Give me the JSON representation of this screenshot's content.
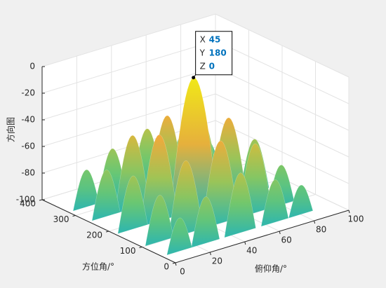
{
  "chart_data": {
    "type": "surface",
    "xlabel": "俯仰角/°",
    "ylabel": "方位角/°",
    "zlabel": "方向图",
    "xlim": [
      0,
      100
    ],
    "xticks": [
      0,
      20,
      40,
      60,
      80,
      100
    ],
    "ylim": [
      0,
      400
    ],
    "yticks": [
      0,
      100,
      200,
      300,
      400
    ],
    "zlim": [
      -100,
      0
    ],
    "zticks": [
      0,
      -20,
      -40,
      -60,
      -80,
      -100
    ],
    "grid": true,
    "lobes": [
      {
        "x": 45,
        "y": 180,
        "z": 0
      },
      {
        "x": 45,
        "y": 100,
        "z": -38
      },
      {
        "x": 45,
        "y": 260,
        "z": -38
      },
      {
        "x": 25,
        "y": 180,
        "z": -35
      },
      {
        "x": 65,
        "y": 180,
        "z": -38
      },
      {
        "x": 25,
        "y": 100,
        "z": -45
      },
      {
        "x": 65,
        "y": 100,
        "z": -48
      },
      {
        "x": 25,
        "y": 260,
        "z": -45
      },
      {
        "x": 65,
        "y": 260,
        "z": -48
      },
      {
        "x": 45,
        "y": 40,
        "z": -55
      },
      {
        "x": 45,
        "y": 320,
        "z": -55
      },
      {
        "x": 10,
        "y": 180,
        "z": -60
      },
      {
        "x": 80,
        "y": 180,
        "z": -60
      },
      {
        "x": 10,
        "y": 100,
        "z": -65
      },
      {
        "x": 80,
        "y": 100,
        "z": -70
      },
      {
        "x": 10,
        "y": 260,
        "z": -65
      },
      {
        "x": 80,
        "y": 260,
        "z": -70
      },
      {
        "x": 25,
        "y": 40,
        "z": -65
      },
      {
        "x": 65,
        "y": 40,
        "z": -68
      },
      {
        "x": 25,
        "y": 320,
        "z": -62
      },
      {
        "x": 65,
        "y": 320,
        "z": -68
      },
      {
        "x": 10,
        "y": 40,
        "z": -75
      },
      {
        "x": 80,
        "y": 40,
        "z": -78
      },
      {
        "x": 10,
        "y": 320,
        "z": -72
      },
      {
        "x": 80,
        "y": 320,
        "z": -78
      }
    ],
    "datatip": {
      "x_label": "X",
      "x": 45,
      "y_label": "Y",
      "y": 180,
      "z_label": "Z",
      "z": 0
    }
  }
}
